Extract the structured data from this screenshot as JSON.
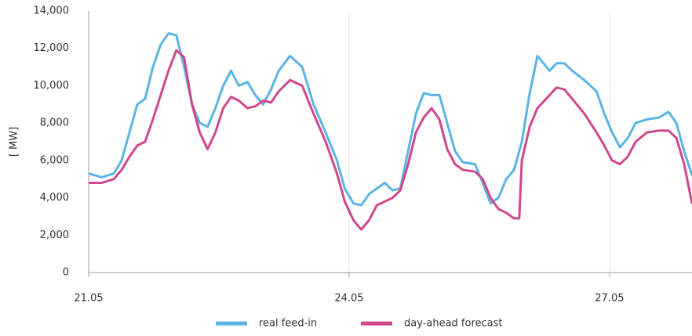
{
  "chart_data": {
    "type": "line",
    "y_label": "[ MW]",
    "x": [
      21.0,
      21.15,
      21.29,
      21.38,
      21.47,
      21.56,
      21.65,
      21.74,
      21.83,
      21.92,
      22.01,
      22.1,
      22.19,
      22.28,
      22.37,
      22.46,
      22.55,
      22.64,
      22.73,
      22.83,
      22.92,
      23.01,
      23.1,
      23.19,
      23.32,
      23.46,
      23.59,
      23.73,
      23.86,
      23.95,
      24.05,
      24.14,
      24.23,
      24.32,
      24.41,
      24.5,
      24.59,
      24.68,
      24.77,
      24.86,
      24.95,
      25.04,
      25.13,
      25.22,
      25.31,
      25.45,
      25.54,
      25.63,
      25.72,
      25.81,
      25.9,
      25.96,
      25.99,
      26.08,
      26.17,
      26.31,
      26.39,
      26.48,
      26.57,
      26.71,
      26.85,
      26.94,
      27.03,
      27.12,
      27.21,
      27.3,
      27.43,
      27.57,
      27.68,
      27.77,
      27.86,
      27.95
    ],
    "series": [
      {
        "name": "real feed-in",
        "color": "#5ab4e5",
        "values": [
          5300,
          5100,
          5300,
          6000,
          7500,
          9000,
          9300,
          11000,
          12200,
          12800,
          12700,
          11000,
          9000,
          8000,
          7800,
          8800,
          10000,
          10800,
          10000,
          10200,
          9500,
          9000,
          9800,
          10800,
          11600,
          11000,
          9000,
          7500,
          6000,
          4500,
          3700,
          3600,
          4200,
          4500,
          4800,
          4400,
          4500,
          6500,
          8500,
          9600,
          9500,
          9500,
          8000,
          6500,
          5900,
          5800,
          4800,
          3700,
          4000,
          5000,
          5500,
          6500,
          7000,
          9600,
          11600,
          10800,
          11200,
          11200,
          10800,
          10300,
          9700,
          8500,
          7500,
          6700,
          7200,
          8000,
          8200,
          8300,
          8600,
          8000,
          6500,
          5200
        ]
      },
      {
        "name": "day-ahead forecast",
        "color": "#d1478c",
        "values": [
          4800,
          4800,
          5000,
          5500,
          6200,
          6800,
          7000,
          8200,
          9500,
          10800,
          11900,
          11500,
          9000,
          7500,
          6600,
          7500,
          8800,
          9400,
          9200,
          8800,
          8900,
          9200,
          9100,
          9700,
          10300,
          10000,
          8500,
          7000,
          5300,
          3800,
          2800,
          2300,
          2800,
          3600,
          3800,
          4000,
          4400,
          5800,
          7500,
          8300,
          8800,
          8200,
          6600,
          5800,
          5500,
          5400,
          5000,
          4000,
          3400,
          3200,
          2900,
          2900,
          6000,
          7800,
          8800,
          9500,
          9900,
          9800,
          9300,
          8500,
          7500,
          6800,
          6000,
          5800,
          6200,
          7000,
          7500,
          7600,
          7600,
          7200,
          5800,
          3700
        ]
      }
    ],
    "xlim": [
      21,
      27.95
    ],
    "xticks": [
      {
        "value": 21,
        "label": "21.05"
      },
      {
        "value": 24,
        "label": "24.05"
      },
      {
        "value": 27,
        "label": "27.05"
      }
    ],
    "ylim": [
      0,
      14000
    ],
    "yticks": [
      0,
      {
        "value": 2000,
        "label": "2,000"
      },
      {
        "value": 4000,
        "label": "4,000"
      },
      {
        "value": 6000,
        "label": "6,000"
      },
      {
        "value": 8000,
        "label": "8,000"
      },
      {
        "value": 10000,
        "label": "10,000"
      },
      {
        "value": 12000,
        "label": "12,000"
      },
      {
        "value": 14000,
        "label": "14,000"
      }
    ],
    "grid": true,
    "legend": "bottom"
  }
}
